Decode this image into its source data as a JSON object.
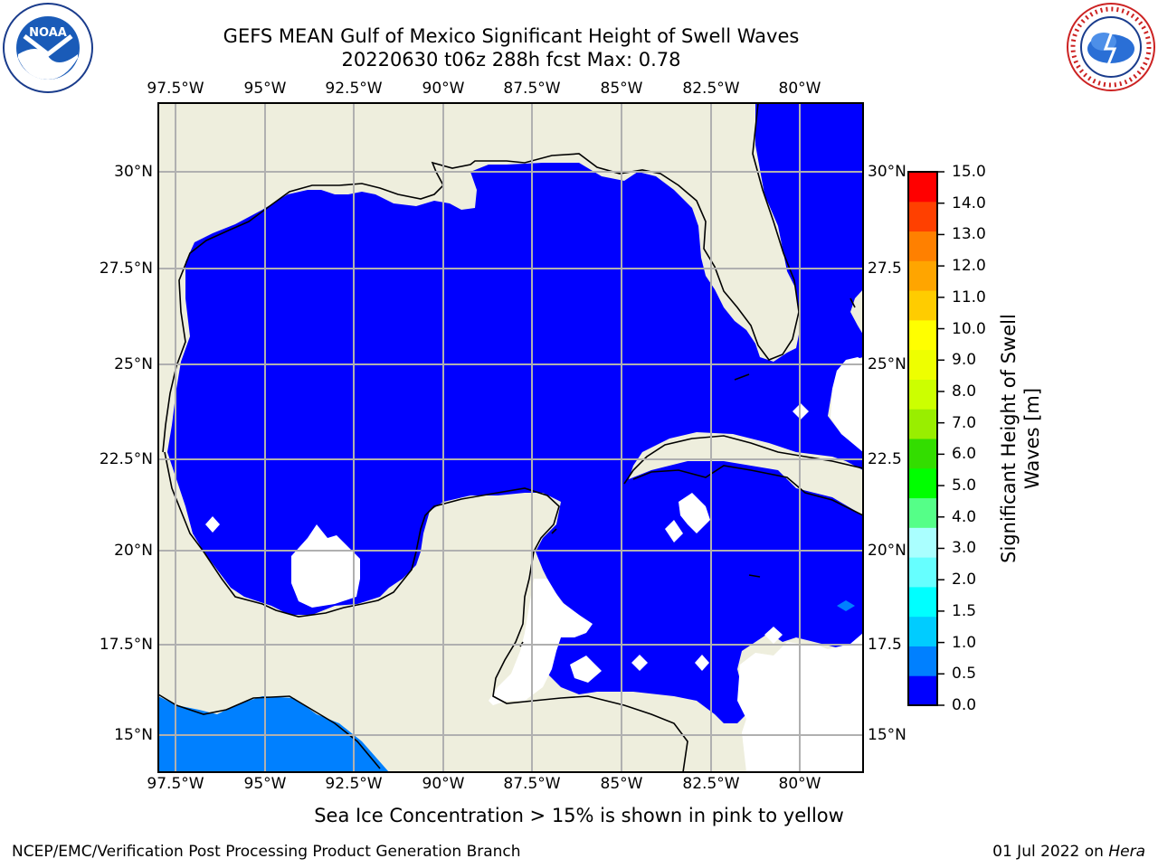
{
  "header": {
    "title": "GEFS MEAN Gulf of Mexico Significant Height of Swell Waves",
    "subtitle": "20220630 t06z 288h fcst   Max: 0.78"
  },
  "logos": {
    "left_text": "NOAA",
    "right_text": "NATIONAL WEATHER SERVICE"
  },
  "axes": {
    "lon_labels": [
      "97.5°W",
      "95°W",
      "92.5°W",
      "90°W",
      "87.5°W",
      "85°W",
      "82.5°W",
      "80°W"
    ],
    "lat_labels": [
      "30°N",
      "27.5°N",
      "25°N",
      "22.5°N",
      "20°N",
      "17.5°N",
      "15°N"
    ],
    "lat_labels_right": [
      "30°N",
      "27.5",
      "25°N",
      "22.5",
      "20°N",
      "17.5",
      "15°N"
    ],
    "lon_range": [
      -98,
      -78.2
    ],
    "lat_range": [
      14,
      31.8
    ]
  },
  "colors": {
    "land": "#eeeedd",
    "ocean_level_0": "#0000ff",
    "ocean_level_1": "#0080ff",
    "grid": "#b0b0b0"
  },
  "colorbar": {
    "label": "Significant Height of Swell Waves [m]",
    "ticks": [
      "0.0",
      "0.5",
      "1.0",
      "1.5",
      "2.0",
      "3.0",
      "4.0",
      "5.0",
      "6.0",
      "7.0",
      "8.0",
      "9.0",
      "10.0",
      "11.0",
      "12.0",
      "13.0",
      "14.0",
      "15.0"
    ],
    "colors": [
      "#0000ff",
      "#0080ff",
      "#00ccff",
      "#00ffff",
      "#66ffff",
      "#aaffff",
      "#55ff88",
      "#00ff00",
      "#33dd00",
      "#99ee00",
      "#ccff00",
      "#eeff00",
      "#ffff00",
      "#ffcc00",
      "#ffa500",
      "#ff8000",
      "#ff4000",
      "#ff0000"
    ]
  },
  "map_note": "Sea Ice Concentration > 15% is shown in pink to yellow",
  "footer": {
    "left": "NCEP/EMC/Verification Post Processing Product Generation Branch",
    "date": "01 Jul 2022 on ",
    "machine": "Hera"
  }
}
